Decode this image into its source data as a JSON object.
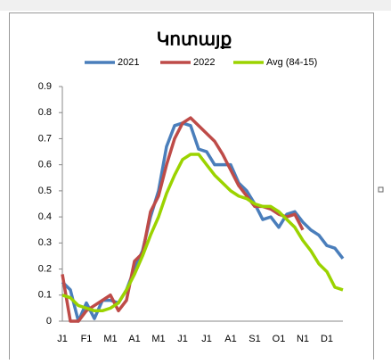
{
  "chart_data": {
    "type": "line",
    "title": "Կոտայք",
    "categories": [
      "J1",
      null,
      null,
      "F1",
      null,
      null,
      "M1",
      null,
      null,
      "A1",
      null,
      null,
      "M1",
      null,
      null,
      "J1",
      null,
      null,
      "J1",
      null,
      null,
      "A1",
      null,
      null,
      "S1",
      null,
      null,
      "O1",
      null,
      null,
      "N1",
      null,
      null,
      "D1",
      null,
      null
    ],
    "series": [
      {
        "name": "2021",
        "color": "#4a7ebb",
        "values": [
          0.15,
          0.12,
          0.0,
          0.07,
          0.01,
          0.08,
          0.08,
          0.07,
          0.12,
          0.2,
          0.27,
          0.4,
          0.5,
          0.67,
          0.75,
          0.76,
          0.75,
          0.66,
          0.65,
          0.6,
          0.6,
          0.6,
          0.53,
          0.5,
          0.45,
          0.39,
          0.4,
          0.36,
          0.41,
          0.42,
          0.38,
          0.35,
          0.33,
          0.29,
          0.28,
          0.24
        ]
      },
      {
        "name": "2022",
        "color": "#be4b48",
        "values": [
          0.18,
          0.0,
          0.0,
          0.04,
          0.06,
          0.08,
          0.1,
          0.04,
          0.08,
          0.23,
          0.26,
          0.42,
          0.48,
          0.6,
          0.7,
          0.76,
          0.78,
          0.75,
          0.72,
          0.69,
          0.64,
          0.58,
          0.52,
          0.48,
          0.44,
          0.44,
          0.43,
          0.41,
          0.4,
          0.41,
          0.35,
          null,
          null,
          null,
          null,
          null
        ]
      },
      {
        "name": "Avg (84-15)",
        "color": "#9bd300",
        "values": [
          0.1,
          0.09,
          0.06,
          0.05,
          0.04,
          0.04,
          0.05,
          0.07,
          0.12,
          0.18,
          0.25,
          0.33,
          0.4,
          0.49,
          0.56,
          0.62,
          0.64,
          0.64,
          0.6,
          0.56,
          0.53,
          0.5,
          0.48,
          0.47,
          0.45,
          0.44,
          0.44,
          0.42,
          0.39,
          0.36,
          0.31,
          0.27,
          0.22,
          0.19,
          0.13,
          0.12
        ]
      }
    ],
    "ylim": [
      0,
      0.9
    ],
    "yticks": [
      0,
      0.1,
      0.2,
      0.3,
      0.4,
      0.5,
      0.6,
      0.7,
      0.8,
      0.9
    ],
    "grid": false,
    "legend": "top"
  }
}
